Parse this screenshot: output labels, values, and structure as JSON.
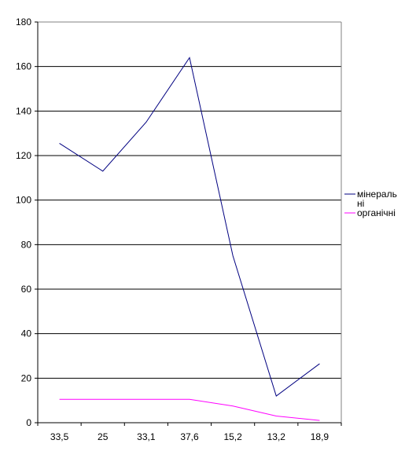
{
  "chart_data": {
    "type": "line",
    "title": "",
    "xlabel": "",
    "ylabel": "",
    "categories": [
      "33,5",
      "25",
      "33,1",
      "37,6",
      "15,2",
      "13,2",
      "18,9"
    ],
    "ylim": [
      0,
      180
    ],
    "yticks": [
      0,
      20,
      40,
      60,
      80,
      100,
      120,
      140,
      160,
      180
    ],
    "grid": "horizontal",
    "legend_position": "right",
    "series": [
      {
        "name": "мінеральні",
        "name_lines": [
          "мінераль",
          "ні"
        ],
        "color": "#000080",
        "values": [
          125.5,
          113,
          135,
          164,
          75,
          12,
          26.5
        ]
      },
      {
        "name": "органічні",
        "name_lines": [
          "органічні"
        ],
        "color": "#ff00ff",
        "values": [
          10.5,
          10.5,
          10.5,
          10.5,
          7.5,
          3,
          1
        ]
      }
    ]
  }
}
